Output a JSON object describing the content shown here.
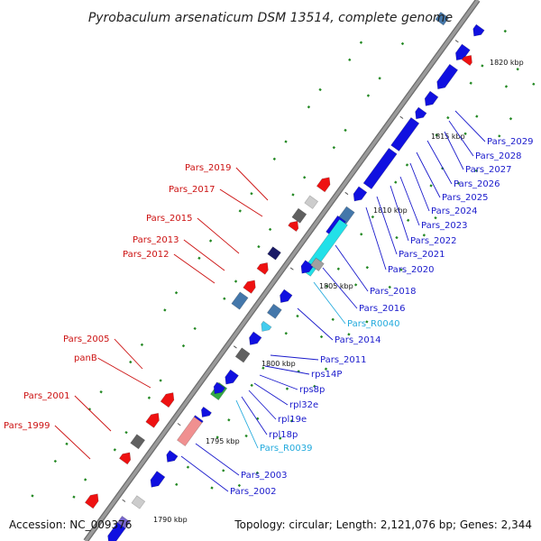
{
  "title": "Pyrobaculum arsenaticum DSM 13514, complete genome",
  "footer": {
    "accession": "Accession: NC_009376",
    "summary": "Topology: circular; Length: 2,121,076 bp; Genes: 2,344"
  },
  "colors": {
    "backbone": "#9a9a9a",
    "forward_gene": "#1010e0",
    "reverse_gene": "#ee1111",
    "rna_gene": "#44ccee",
    "forward_label": "#1a1acc",
    "reverse_label": "#cc1111",
    "rna_label": "#22aadd",
    "gc_dot": "#228822"
  },
  "ticks": [
    {
      "label": "1820 kbp"
    },
    {
      "label": "1815 kbp"
    },
    {
      "label": "1810 kbp"
    },
    {
      "label": "1805 kbp"
    },
    {
      "label": "1800 kbp"
    },
    {
      "label": "1795 kbp"
    },
    {
      "label": "1790 kbp"
    }
  ],
  "labels_right": [
    {
      "text": "Pars_2029"
    },
    {
      "text": "Pars_2028"
    },
    {
      "text": "Pars_2027"
    },
    {
      "text": "Pars_2026"
    },
    {
      "text": "Pars_2025"
    },
    {
      "text": "Pars_2024"
    },
    {
      "text": "Pars_2023"
    },
    {
      "text": "Pars_2022"
    },
    {
      "text": "Pars_2021"
    },
    {
      "text": "Pars_2020"
    },
    {
      "text": "Pars_2018"
    },
    {
      "text": "Pars_2016"
    },
    {
      "text": "Pars_R0040"
    },
    {
      "text": "Pars_2014"
    },
    {
      "text": "Pars_2011"
    },
    {
      "text": "rps14P"
    },
    {
      "text": "rps8p"
    },
    {
      "text": "rpl32e"
    },
    {
      "text": "rpl19e"
    },
    {
      "text": "rpl18p"
    },
    {
      "text": "Pars_R0039"
    },
    {
      "text": "Pars_2003"
    },
    {
      "text": "Pars_2002"
    }
  ],
  "labels_left": [
    {
      "text": "Pars_2019"
    },
    {
      "text": "Pars_2017"
    },
    {
      "text": "Pars_2015"
    },
    {
      "text": "Pars_2013"
    },
    {
      "text": "Pars_2012"
    },
    {
      "text": "Pars_2005"
    },
    {
      "text": "panB"
    },
    {
      "text": "Pars_2001"
    },
    {
      "text": "Pars_1999"
    }
  ]
}
